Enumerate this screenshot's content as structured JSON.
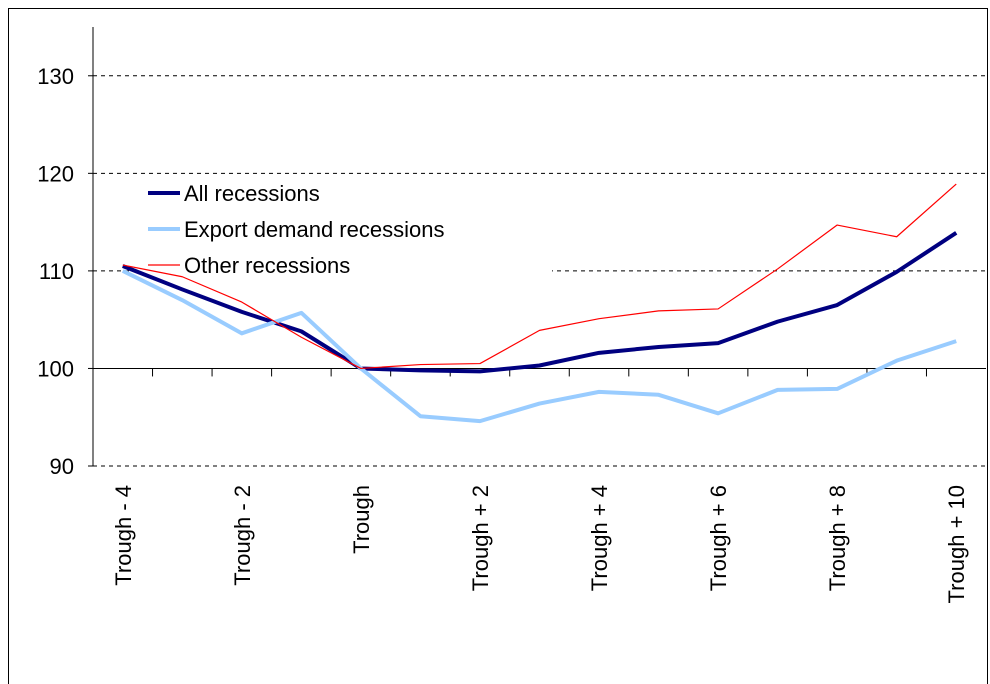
{
  "chart_data": {
    "type": "line",
    "categories": [
      "Trough - 4",
      null,
      "Trough - 2",
      null,
      "Trough",
      null,
      "Trough + 2",
      null,
      "Trough + 4",
      null,
      "Trough + 6",
      null,
      "Trough + 8",
      null,
      "Trough + 10"
    ],
    "series": [
      {
        "name": "All recessions",
        "color": "#000080",
        "values": [
          110.5,
          108.1,
          105.8,
          103.8,
          100,
          99.8,
          99.7,
          100.3,
          101.6,
          102.2,
          102.6,
          104.8,
          106.5,
          109.9,
          113.9
        ]
      },
      {
        "name": "Export demand recessions",
        "color": "#99ccff",
        "values": [
          110,
          107,
          103.6,
          105.7,
          100,
          95.1,
          94.6,
          96.4,
          97.6,
          97.3,
          95.4,
          97.8,
          97.9,
          100.8,
          102.8
        ]
      },
      {
        "name": "Other recessions",
        "color": "#ff0000",
        "values": [
          110.6,
          109.4,
          106.8,
          103.2,
          100,
          100.4,
          100.5,
          103.9,
          105.1,
          105.9,
          106.1,
          110.2,
          114.7,
          113.5,
          118.9
        ]
      }
    ],
    "ylim": [
      90,
      135
    ],
    "yticks": [
      90,
      100,
      110,
      120,
      130
    ],
    "grid": true,
    "legend": "upper left"
  }
}
